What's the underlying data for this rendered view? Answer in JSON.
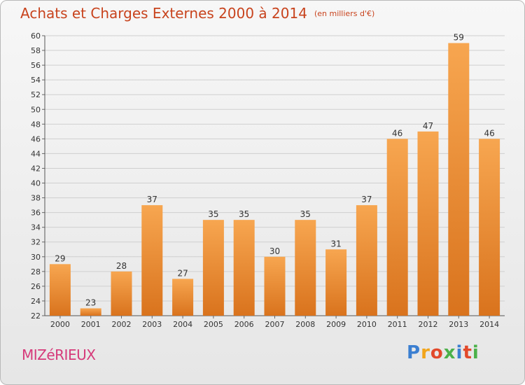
{
  "title": "Achats et Charges Externes 2000 à 2014",
  "subtitle": "(en milliers d'€)",
  "place": "MIZéRIEUX",
  "logo": {
    "letters": [
      "P",
      "r",
      "o",
      "x",
      "i",
      "t",
      "i"
    ],
    "colors": [
      "#3b7fd1",
      "#f2a51a",
      "#e2492b",
      "#4bb14a",
      "#3b7fd1",
      "#e2492b",
      "#4bb14a"
    ]
  },
  "colors": {
    "bar_light": "#f7a650",
    "bar_dark": "#d9731d",
    "title": "#c8431d",
    "place": "#d63a7a"
  },
  "chart_data": {
    "type": "bar",
    "categories": [
      "2000",
      "2001",
      "2002",
      "2003",
      "2004",
      "2005",
      "2006",
      "2007",
      "2008",
      "2009",
      "2010",
      "2011",
      "2012",
      "2013",
      "2014"
    ],
    "values": [
      29,
      23,
      28,
      37,
      27,
      35,
      35,
      30,
      35,
      31,
      37,
      46,
      47,
      59,
      46
    ],
    "ylim": [
      22,
      60
    ],
    "yticks": [
      22,
      24,
      26,
      28,
      30,
      32,
      34,
      36,
      38,
      40,
      42,
      44,
      46,
      48,
      50,
      52,
      54,
      56,
      58,
      60
    ],
    "grid": true,
    "data_labels": true
  }
}
